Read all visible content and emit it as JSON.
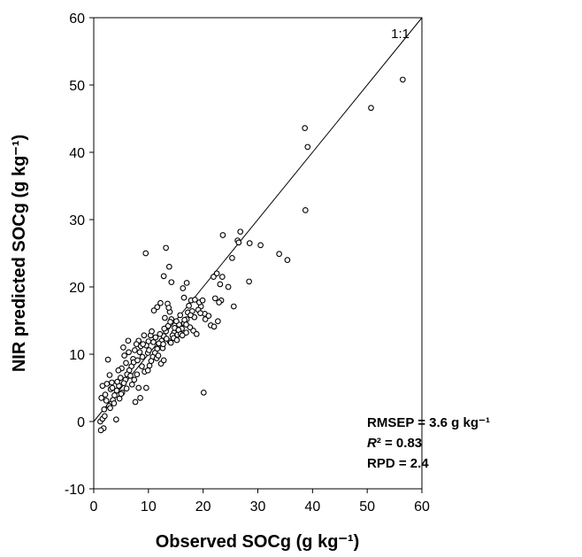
{
  "chart_data": {
    "type": "scatter",
    "xlabel": "Observed SOCg (g kg⁻¹)",
    "ylabel": "NIR predicted SOCg (g kg⁻¹)",
    "xlim": [
      0,
      60
    ],
    "ylim": [
      -10,
      60
    ],
    "x_ticks": [
      "0",
      "10",
      "20",
      "30",
      "40",
      "50",
      "60"
    ],
    "y_ticks": [
      "-10",
      "0",
      "10",
      "20",
      "30",
      "40",
      "50",
      "60"
    ],
    "grid": false,
    "reference_line": {
      "label": "1:1",
      "from": [
        0,
        0
      ],
      "to": [
        60,
        60
      ]
    },
    "annotations": {
      "rmsep": "RMSEP = 3.6 g kg⁻¹",
      "r2_symbol": "R",
      "r2_rest": "² = 0.83",
      "rpd": "RPD = 2.4"
    },
    "points": [
      [
        56.5,
        50.8
      ],
      [
        50.7,
        46.6
      ],
      [
        38.6,
        43.6
      ],
      [
        39.1,
        40.8
      ],
      [
        38.7,
        31.4
      ],
      [
        33.9,
        24.9
      ],
      [
        35.4,
        24.0
      ],
      [
        30.5,
        26.2
      ],
      [
        28.5,
        26.5
      ],
      [
        28.4,
        20.8
      ],
      [
        26.8,
        28.2
      ],
      [
        26.3,
        26.9
      ],
      [
        26.5,
        26.6
      ],
      [
        23.6,
        27.7
      ],
      [
        25.3,
        24.3
      ],
      [
        25.6,
        17.1
      ],
      [
        24.6,
        20.0
      ],
      [
        23.5,
        21.5
      ],
      [
        23.1,
        20.4
      ],
      [
        22.5,
        22.0
      ],
      [
        21.9,
        21.5
      ],
      [
        23.3,
        18.0
      ],
      [
        22.2,
        18.3
      ],
      [
        22.7,
        14.9
      ],
      [
        21.4,
        14.3
      ],
      [
        22.0,
        14.1
      ],
      [
        20.1,
        4.3
      ],
      [
        20.3,
        16.0
      ],
      [
        19.6,
        17.1
      ],
      [
        19.3,
        17.7
      ],
      [
        17.8,
        18.0
      ],
      [
        18.2,
        13.5
      ],
      [
        17.0,
        20.6
      ],
      [
        16.3,
        19.8
      ],
      [
        16.5,
        18.4
      ],
      [
        17.2,
        16.2
      ],
      [
        17.0,
        15.2
      ],
      [
        16.5,
        14.6
      ],
      [
        16.1,
        13.8
      ],
      [
        15.6,
        14.4
      ],
      [
        15.1,
        14.9
      ],
      [
        14.7,
        13.2
      ],
      [
        14.2,
        20.7
      ],
      [
        13.8,
        23.0
      ],
      [
        13.2,
        25.8
      ],
      [
        12.8,
        21.6
      ],
      [
        13.5,
        17.5
      ],
      [
        13.9,
        16.3
      ],
      [
        14.2,
        15.2
      ],
      [
        13.6,
        14.2
      ],
      [
        13.2,
        13.4
      ],
      [
        12.8,
        12.7
      ],
      [
        12.4,
        12.0
      ],
      [
        12.0,
        11.4
      ],
      [
        11.6,
        10.8
      ],
      [
        11.2,
        10.2
      ],
      [
        10.8,
        9.6
      ],
      [
        11.6,
        17.0
      ],
      [
        11.0,
        16.5
      ],
      [
        10.4,
        12.8
      ],
      [
        10.0,
        11.9
      ],
      [
        9.6,
        11.3
      ],
      [
        9.5,
        25.0
      ],
      [
        9.9,
        10.2
      ],
      [
        9.2,
        12.8
      ],
      [
        8.9,
        9.6
      ],
      [
        8.6,
        11.2
      ],
      [
        8.2,
        12.0
      ],
      [
        7.8,
        11.5
      ],
      [
        7.5,
        10.6
      ],
      [
        7.2,
        9.3
      ],
      [
        6.9,
        8.2
      ],
      [
        6.5,
        7.6
      ],
      [
        6.1,
        7.0
      ],
      [
        5.8,
        6.2
      ],
      [
        5.5,
        5.7
      ],
      [
        5.1,
        7.9
      ],
      [
        5.4,
        11.0
      ],
      [
        4.9,
        6.5
      ],
      [
        4.6,
        5.3
      ],
      [
        4.2,
        4.6
      ],
      [
        3.8,
        3.9
      ],
      [
        3.5,
        3.2
      ],
      [
        3.1,
        4.8
      ],
      [
        2.8,
        2.3
      ],
      [
        2.6,
        9.2
      ],
      [
        2.4,
        5.6
      ],
      [
        2.1,
        4.0
      ],
      [
        1.9,
        1.8
      ],
      [
        1.6,
        5.3
      ],
      [
        1.4,
        3.5
      ],
      [
        1.2,
        0.0
      ],
      [
        1.8,
        -1.0
      ],
      [
        1.6,
        0.4
      ],
      [
        1.3,
        -1.3
      ],
      [
        4.1,
        0.3
      ],
      [
        7.6,
        2.9
      ],
      [
        8.2,
        5.0
      ],
      [
        8.5,
        3.5
      ],
      [
        9.6,
        5.0
      ],
      [
        10.6,
        13.4
      ],
      [
        11.5,
        9.4
      ],
      [
        12.3,
        8.6
      ],
      [
        12.8,
        9.1
      ],
      [
        13.9,
        11.9
      ],
      [
        14.4,
        12.8
      ],
      [
        15.3,
        12.9
      ],
      [
        15.8,
        15.8
      ],
      [
        16.9,
        13.2
      ],
      [
        17.6,
        14.0
      ],
      [
        18.8,
        13.0
      ],
      [
        19.1,
        16.6
      ],
      [
        20.4,
        15.2
      ],
      [
        6.3,
        12.0
      ],
      [
        5.6,
        9.8
      ],
      [
        7.3,
        8.8
      ],
      [
        3.3,
        5.8
      ],
      [
        4.5,
        7.6
      ],
      [
        2.9,
        6.9
      ],
      [
        9.3,
        7.4
      ],
      [
        10.2,
        8.3
      ],
      [
        11.9,
        11.6
      ],
      [
        12.6,
        10.9
      ],
      [
        13.3,
        12.3
      ],
      [
        14.8,
        13.9
      ],
      [
        15.5,
        13.6
      ],
      [
        16.6,
        15.1
      ],
      [
        17.4,
        17.2
      ],
      [
        18.0,
        16.4
      ],
      [
        12.1,
        13.0
      ],
      [
        13.0,
        15.4
      ],
      [
        14.0,
        14.8
      ],
      [
        8.0,
        9.1
      ],
      [
        6.7,
        6.8
      ],
      [
        5.2,
        4.3
      ],
      [
        3.7,
        2.7
      ],
      [
        2.3,
        3.1
      ],
      [
        4.7,
        3.4
      ],
      [
        6.0,
        4.9
      ],
      [
        7.0,
        5.5
      ],
      [
        8.8,
        8.2
      ],
      [
        9.9,
        7.6
      ],
      [
        10.9,
        11.8
      ],
      [
        11.3,
        12.5
      ],
      [
        12.7,
        11.5
      ],
      [
        14.6,
        12.4
      ],
      [
        15.9,
        13.0
      ],
      [
        16.9,
        14.4
      ],
      [
        18.4,
        15.5
      ],
      [
        19.9,
        18.0
      ],
      [
        21.0,
        15.7
      ],
      [
        13.7,
        16.9
      ],
      [
        12.2,
        17.6
      ],
      [
        10.1,
        10.6
      ],
      [
        6.4,
        10.3
      ],
      [
        3.0,
        2.0
      ],
      [
        2.0,
        0.8
      ],
      [
        5.9,
        8.7
      ],
      [
        7.9,
        7.0
      ],
      [
        9.0,
        11.5
      ],
      [
        15.2,
        12.1
      ],
      [
        16.2,
        12.8
      ],
      [
        17.7,
        15.8
      ],
      [
        11.8,
        9.8
      ],
      [
        8.4,
        10.3
      ],
      [
        4.3,
        5.9
      ],
      [
        5.0,
        4.1
      ],
      [
        3.4,
        5.0
      ],
      [
        12.9,
        13.8
      ],
      [
        14.1,
        11.7
      ],
      [
        18.5,
        18.1
      ],
      [
        19.5,
        16.1
      ],
      [
        22.9,
        17.7
      ],
      [
        10.5,
        9.0
      ],
      [
        7.4,
        6.2
      ]
    ]
  }
}
